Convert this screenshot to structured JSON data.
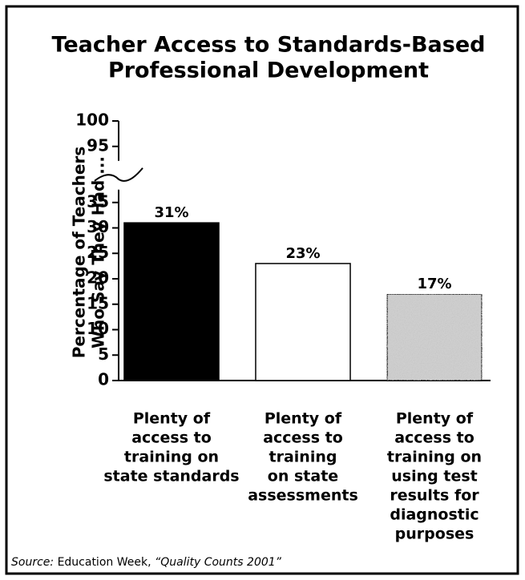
{
  "chart_data": {
    "type": "bar",
    "title": [
      "Teacher Access to Standards-Based",
      "Professional Development"
    ],
    "ylabel": [
      "Percentage of Teachers",
      "Who Say They Had ..."
    ],
    "categories": [
      [
        "Plenty of",
        "access to",
        "training on",
        "state standards"
      ],
      [
        "Plenty of",
        "access to",
        "training",
        "on state",
        "assessments"
      ],
      [
        "Plenty of",
        "access to",
        "training on",
        "using test",
        "results for",
        "diagnostic",
        "purposes"
      ]
    ],
    "values": [
      31,
      23,
      17
    ],
    "value_labels": [
      "31%",
      "23%",
      "17%"
    ],
    "colors": [
      "#000000",
      "#ffffff",
      "#cfcfcf"
    ],
    "ylim": [
      0,
      100
    ],
    "yticks": [
      0,
      5,
      10,
      15,
      20,
      25,
      30,
      35,
      95,
      100
    ],
    "grid": false,
    "source": {
      "label": "Source:",
      "publisher": "Education Week,",
      "report": "“Quality Counts 2001”"
    }
  }
}
